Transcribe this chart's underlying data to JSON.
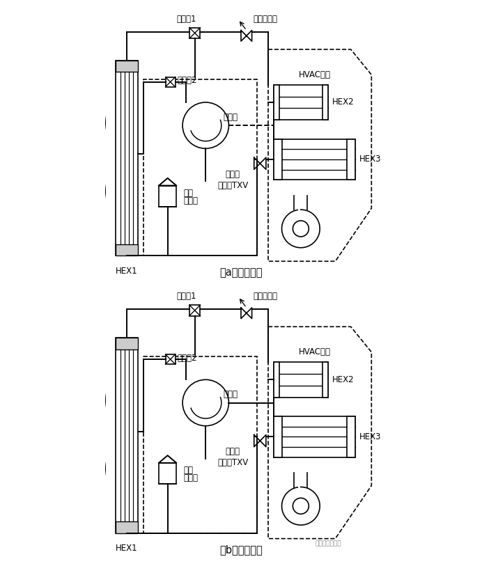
{
  "title_a": "（a）制冷模式",
  "title_b": "（b）制热模式",
  "label_emv1": "电磁阀1",
  "label_eev": "电子膨胀阀",
  "label_emv2": "电磁阀2",
  "label_comp": "压缩机",
  "label_acc_line1": "气液",
  "label_acc_line2": "分离器",
  "label_txv_line1": "带截止",
  "label_txv_line2": "功能的TXV",
  "label_hex1": "HEX1",
  "label_hex2": "HEX2",
  "label_hex3": "HEX3",
  "label_hvac": "HVAC总成",
  "label_watermark": "汽车热管理之家",
  "bg_color": "#ffffff"
}
